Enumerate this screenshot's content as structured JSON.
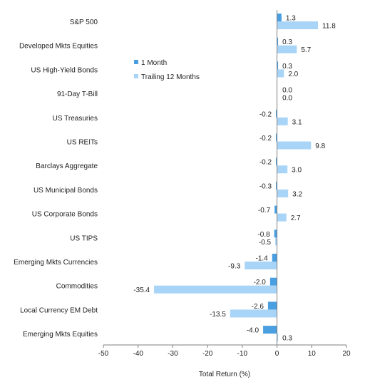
{
  "chart_data": {
    "type": "bar",
    "orientation": "horizontal",
    "title": "",
    "xlabel": "Total Return (%)",
    "ylabel": "",
    "xlim": [
      -50,
      20
    ],
    "xticks": [
      -50,
      -40,
      -30,
      -20,
      -10,
      0,
      10,
      20
    ],
    "grid": false,
    "legend_position": "upper-middle",
    "categories": [
      "S&P 500",
      "Developed Mkts Equities",
      "US High-Yield Bonds",
      "91-Day T-Bill",
      "US Treasuries",
      "US REITs",
      "Barclays Aggregate",
      "US Municipal Bonds",
      "US Corporate Bonds",
      "US TIPS",
      "Emerging Mkts Currencies",
      "Commodities",
      "Local Currency EM Debt",
      "Emerging Mkts Equities"
    ],
    "series": [
      {
        "name": "1 Month",
        "color": "#4a9fe0",
        "values": [
          1.3,
          0.3,
          0.3,
          0.0,
          -0.2,
          -0.2,
          -0.2,
          -0.3,
          -0.7,
          -0.8,
          -1.4,
          -2.0,
          -2.6,
          -4.0
        ],
        "labels": [
          "1.3",
          "0.3",
          "0.3",
          "0.0",
          "-0.2",
          "-0.2",
          "-0.2",
          "-0.3",
          "-0.7",
          "-0.8",
          "-1.4",
          "-2.0",
          "-2.6",
          "-4.0"
        ]
      },
      {
        "name": "Trailing 12 Months",
        "color": "#a8d4f7",
        "values": [
          11.8,
          5.7,
          2.0,
          0.0,
          3.1,
          9.8,
          3.0,
          3.2,
          2.7,
          -0.5,
          -9.3,
          -35.4,
          -13.5,
          0.3
        ],
        "labels": [
          "11.8",
          "5.7",
          "2.0",
          "0.0",
          "3.1",
          "9.8",
          "3.0",
          "3.2",
          "2.7",
          "-0.5",
          "-9.3",
          "-35.4",
          "-13.5",
          "0.3"
        ]
      }
    ]
  }
}
